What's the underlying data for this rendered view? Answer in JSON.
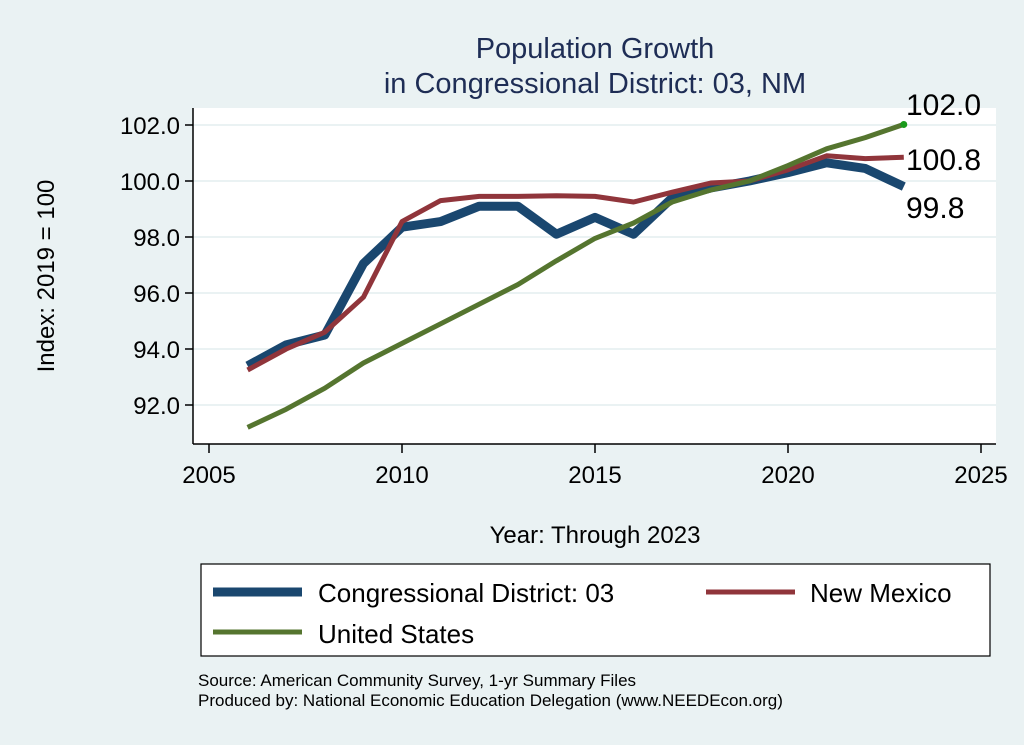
{
  "chart_data": {
    "type": "line",
    "title": [
      "Population Growth",
      "in Congressional District: 03, NM"
    ],
    "xlabel": "Year: Through 2023",
    "ylabel": "Index: 2019 = 100",
    "xlim": [
      2005,
      2025
    ],
    "ylim": [
      91.0,
      102.6
    ],
    "xticks": [
      2005,
      2010,
      2015,
      2020,
      2025
    ],
    "xtick_labels": [
      "2005",
      "2010",
      "2015",
      "2020",
      "2025"
    ],
    "yticks": [
      92,
      94,
      96,
      98,
      100,
      102
    ],
    "ytick_labels": [
      "92.0",
      "94.0",
      "96.0",
      "98.0",
      "100.0",
      "102.0"
    ],
    "grid": true,
    "legend_position": "bottom",
    "x": [
      2006,
      2007,
      2008,
      2009,
      2010,
      2011,
      2012,
      2013,
      2014,
      2015,
      2016,
      2017,
      2018,
      2019,
      2020,
      2021,
      2022,
      2023
    ],
    "series": [
      {
        "name": "Congressional District: 03",
        "color": "#1a476f",
        "values": [
          93.4,
          94.15,
          94.5,
          97.05,
          98.35,
          98.55,
          99.1,
          99.1,
          98.1,
          98.7,
          98.1,
          99.4,
          99.75,
          100.0,
          100.3,
          100.65,
          100.45,
          99.8
        ],
        "end_label": "99.8"
      },
      {
        "name": "New Mexico",
        "color": "#90353b",
        "values": [
          93.25,
          94.0,
          94.6,
          95.85,
          98.55,
          99.3,
          99.45,
          99.45,
          99.47,
          99.45,
          99.25,
          99.6,
          99.93,
          100.0,
          100.4,
          100.9,
          100.8,
          100.85
        ],
        "end_label": "100.8"
      },
      {
        "name": "United States",
        "color": "#55752f",
        "values": [
          91.2,
          91.85,
          92.6,
          93.5,
          94.2,
          94.9,
          95.6,
          96.3,
          97.15,
          97.95,
          98.5,
          99.25,
          99.68,
          100.0,
          100.55,
          101.15,
          101.55,
          102.02
        ],
        "end_label": "102.0"
      }
    ],
    "notes": [
      "Source: American Community Survey, 1-yr Summary Files",
      "Produced by: National Economic Education Delegation (www.NEEDEcon.org)"
    ]
  },
  "colors": {
    "background": "#eaf2f3",
    "plot_background": "#ffffff",
    "gridline": "#eaf2f3",
    "title": "#1e2d55",
    "end_marker": "#1a9a1a"
  }
}
